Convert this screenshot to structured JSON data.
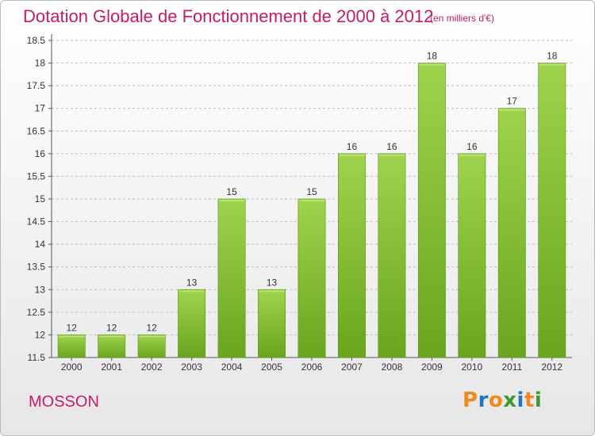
{
  "header": {
    "title": "Dotation Globale de Fonctionnement de 2000 à 2012",
    "subtitle": "(en milliers d'€)"
  },
  "footer": {
    "commune": "MOSSON",
    "logo_text": "Proxiti",
    "logo_letters": [
      {
        "char": "P",
        "color": "#f08a1c"
      },
      {
        "char": "r",
        "color": "#1f76c2"
      },
      {
        "char": "o",
        "color": "#f08a1c"
      },
      {
        "char": "x",
        "color": "#3a9a2d"
      },
      {
        "char": "i",
        "color": "#1f76c2"
      },
      {
        "char": "t",
        "color": "#f08a1c"
      },
      {
        "char": "i",
        "color": "#3a9a2d"
      }
    ]
  },
  "colors": {
    "title": "#c71c63",
    "bar_top": "#9fd34d",
    "bar_bottom": "#6aa51f",
    "grid": "#bdbdbd"
  },
  "chart_data": {
    "type": "bar",
    "categories": [
      "2000",
      "2001",
      "2002",
      "2003",
      "2004",
      "2005",
      "2006",
      "2007",
      "2008",
      "2009",
      "2010",
      "2011",
      "2012"
    ],
    "values": [
      12,
      12,
      12,
      13,
      15,
      13,
      15,
      16,
      16,
      18,
      16,
      17,
      18
    ],
    "value_labels": [
      "12",
      "12",
      "12",
      "13",
      "15",
      "13",
      "15",
      "16",
      "16",
      "18",
      "16",
      "17",
      "18"
    ],
    "ylim": [
      11.5,
      18.5
    ],
    "yticks": [
      "11.5",
      "12",
      "12.5",
      "13",
      "13.5",
      "14",
      "14.5",
      "15",
      "15.5",
      "16",
      "16.5",
      "17",
      "17.5",
      "18",
      "18.5"
    ],
    "grid": true,
    "grid_style": "dashed-horizontal"
  }
}
